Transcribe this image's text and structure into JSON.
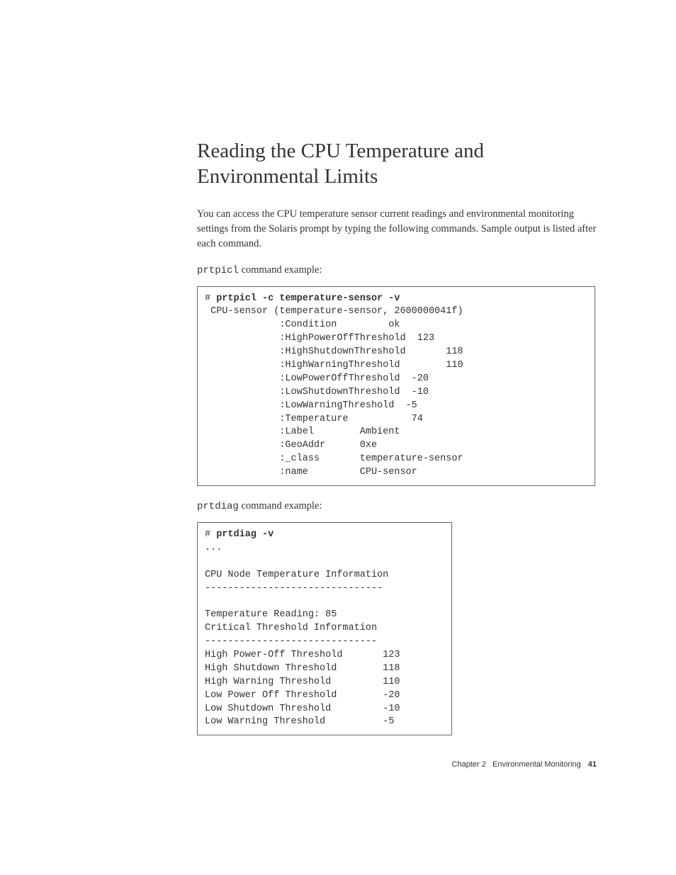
{
  "heading": "Reading the CPU Temperature and Environmental Limits",
  "intro": "You can access the CPU temperature sensor current readings and environmental monitoring settings from the Solaris prompt by typing the following commands. Sample output is listed after each command.",
  "label1_cmd": "prtpicl",
  "label1_rest": " command example:",
  "code1_prompt": "# ",
  "code1_cmd": "prtpicl -c temperature-sensor -v",
  "code1_body": " CPU-sensor (temperature-sensor, 2600000041f)\n             :Condition         ok\n             :HighPowerOffThreshold  123\n             :HighShutdownThreshold       118\n             :HighWarningThreshold        110\n             :LowPowerOffThreshold  -20\n             :LowShutdownThreshold  -10\n             :LowWarningThreshold  -5\n             :Temperature           74\n             :Label        Ambient\n             :GeoAddr      0xe\n             :_class       temperature-sensor\n             :name         CPU-sensor",
  "label2_cmd": "prtdiag",
  "label2_rest": " command example:",
  "code2_prompt": "# ",
  "code2_cmd": "prtdiag -v",
  "code2_body": "...\n\nCPU Node Temperature Information\n-------------------------------\n\nTemperature Reading: 85\nCritical Threshold Information\n------------------------------\nHigh Power-Off Threshold       123\nHigh Shutdown Threshold        118\nHigh Warning Threshold         110\nLow Power Off Threshold        -20\nLow Shutdown Threshold         -10\nLow Warning Threshold          -5",
  "footer_chapter": "Chapter 2",
  "footer_title": "Environmental Monitoring",
  "footer_page": "41"
}
